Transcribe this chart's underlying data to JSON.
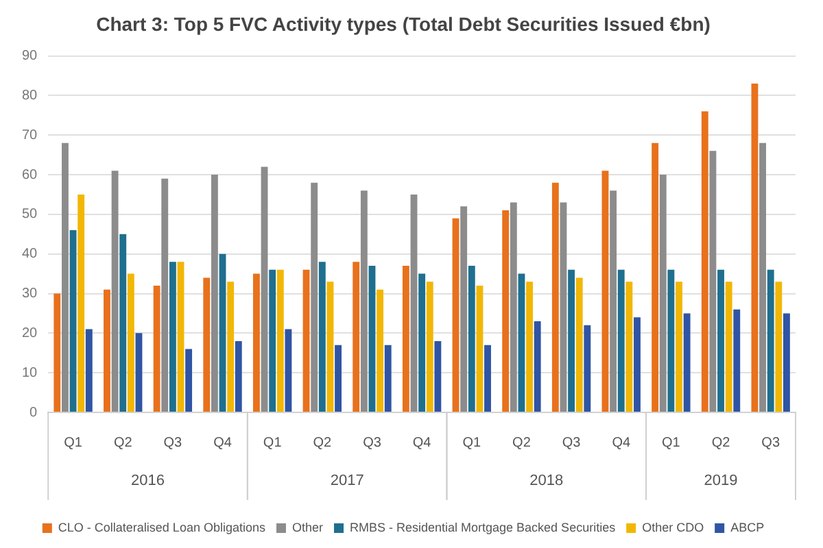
{
  "chart_data": {
    "type": "bar",
    "title": "Chart 3: Top 5 FVC Activity types (Total Debt Securities Issued €bn)",
    "categories": [
      "Q1",
      "Q2",
      "Q3",
      "Q4",
      "Q1",
      "Q2",
      "Q3",
      "Q4",
      "Q1",
      "Q2",
      "Q3",
      "Q4",
      "Q1",
      "Q2",
      "Q3"
    ],
    "annotations": [
      "2016",
      "2017",
      "2018",
      "2019"
    ],
    "series": [
      {
        "name": "CLO - Collateralised Loan Obligations",
        "color": "#e8711c",
        "values": [
          30,
          31,
          32,
          34,
          35,
          36,
          38,
          37,
          49,
          51,
          58,
          61,
          68,
          76,
          83
        ]
      },
      {
        "name": "Other",
        "color": "#8c8c8c",
        "values": [
          68,
          61,
          59,
          60,
          62,
          58,
          56,
          55,
          52,
          53,
          53,
          56,
          60,
          66,
          68
        ]
      },
      {
        "name": "RMBS - Residential Mortgage Backed Securities",
        "color": "#1f6f8f",
        "values": [
          46,
          45,
          38,
          40,
          36,
          38,
          37,
          35,
          37,
          35,
          36,
          36,
          36,
          36,
          36
        ]
      },
      {
        "name": "Other CDO",
        "color": "#f2b705",
        "values": [
          55,
          35,
          38,
          33,
          36,
          33,
          31,
          33,
          32,
          33,
          34,
          33,
          33,
          33,
          33
        ]
      },
      {
        "name": "ABCP",
        "color": "#2f55a4",
        "values": [
          21,
          20,
          16,
          18,
          21,
          17,
          17,
          18,
          17,
          23,
          22,
          24,
          25,
          26,
          25
        ]
      }
    ],
    "ylim": [
      0,
      90
    ],
    "yticks": [
      0,
      10,
      20,
      30,
      40,
      50,
      60,
      70,
      80,
      90
    ],
    "grid": "y",
    "legend": "bottom"
  }
}
